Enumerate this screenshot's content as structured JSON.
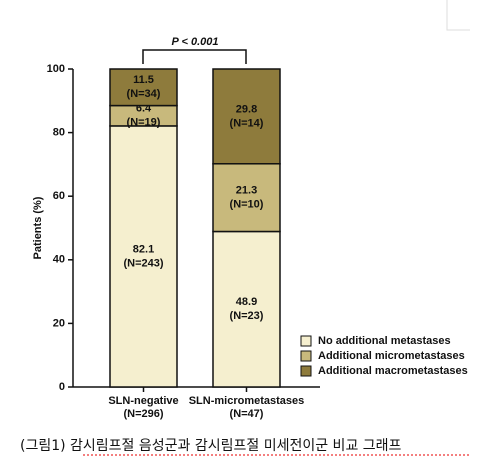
{
  "chart_data": {
    "type": "stacked_bar",
    "y_label": "Patients (%)",
    "annotation": "P < 0.001",
    "categories": [
      "SLN-negative",
      "SLN-micrometastases"
    ],
    "category_counts": [
      "(N=296)",
      "(N=47)"
    ],
    "ylim": [
      0,
      100
    ],
    "yticks": [
      0,
      20,
      40,
      60,
      80,
      100
    ],
    "legend": "bottom-right",
    "series": [
      {
        "name": "No additional metastases",
        "color": "#f5efcf",
        "values": [
          82.1,
          48.9
        ],
        "count_labels": [
          "(N=243)",
          "(N=23)"
        ]
      },
      {
        "name": "Additional micrometastases",
        "color": "#c8b97c",
        "values": [
          6.4,
          21.3
        ],
        "count_labels": [
          "(N=19)",
          "(N=10)"
        ]
      },
      {
        "name": "Additional macrometastases",
        "color": "#8e7b3c",
        "values": [
          11.5,
          29.8
        ],
        "count_labels": [
          "(N=34)",
          "(N=14)"
        ]
      }
    ]
  },
  "caption": "(그림1) 감시림프절 음성군과 감시림프절 미세전이군 비교 그래프"
}
